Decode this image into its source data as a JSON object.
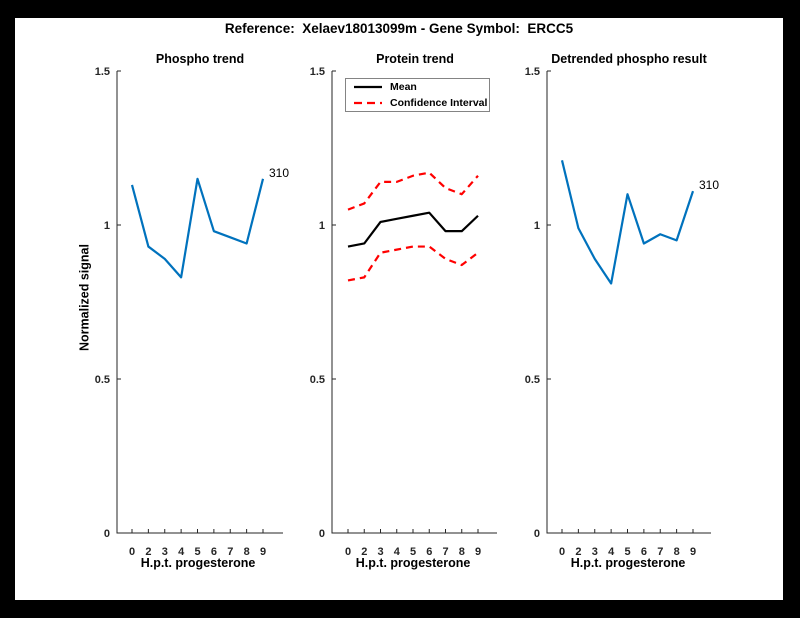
{
  "figure": {
    "title": "Reference:  Xelaev18013099m - Gene Symbol:  ERCC5",
    "background_color": "#000000",
    "area_color": "#ffffff"
  },
  "axes_style": {
    "axis_color": "#262626",
    "tick_label_color": "#262626"
  },
  "chart_data": [
    {
      "type": "line",
      "title": "Phospho trend",
      "xlabel": "H.p.t. progesterone",
      "ylabel": "Normalized signal",
      "ylim": [
        0,
        1.5
      ],
      "grid": false,
      "yticks": [
        "0",
        "0.5",
        "1",
        "1.5"
      ],
      "categories": [
        "0",
        "2",
        "3",
        "4",
        "5",
        "6",
        "7",
        "8",
        "9"
      ],
      "series": [
        {
          "name": "310",
          "color": "#0072bd",
          "style": "solid",
          "values": [
            1.13,
            0.93,
            0.89,
            0.83,
            1.15,
            0.98,
            0.96,
            0.94,
            1.15
          ]
        }
      ],
      "end_label": "310"
    },
    {
      "type": "line",
      "title": "Protein trend",
      "xlabel": "H.p.t. progesterone",
      "ylabel": "",
      "ylim": [
        0,
        1.5
      ],
      "grid": false,
      "yticks": [
        "0",
        "0.5",
        "1",
        "1.5"
      ],
      "categories": [
        "0",
        "2",
        "3",
        "4",
        "5",
        "6",
        "7",
        "8",
        "9"
      ],
      "series": [
        {
          "name": "Mean",
          "color": "#000000",
          "style": "solid",
          "values": [
            0.93,
            0.94,
            1.01,
            1.02,
            1.03,
            1.04,
            0.98,
            0.98,
            1.03
          ]
        },
        {
          "name": "Confidence Interval upper",
          "color": "#ff0000",
          "style": "dashed",
          "values": [
            1.05,
            1.07,
            1.14,
            1.14,
            1.16,
            1.17,
            1.12,
            1.1,
            1.16
          ]
        },
        {
          "name": "Confidence Interval lower",
          "color": "#ff0000",
          "style": "dashed",
          "values": [
            0.82,
            0.83,
            0.91,
            0.92,
            0.93,
            0.93,
            0.89,
            0.87,
            0.91
          ]
        }
      ],
      "legend": {
        "position": "northwest",
        "entries": [
          {
            "label": "Mean",
            "color": "#000000",
            "style": "solid"
          },
          {
            "label": "Confidence Interval",
            "color": "#ff0000",
            "style": "dashed"
          }
        ]
      }
    },
    {
      "type": "line",
      "title": "Detrended phospho result",
      "xlabel": "H.p.t. progesterone",
      "ylabel": "",
      "ylim": [
        0,
        1.5
      ],
      "grid": false,
      "yticks": [
        "0",
        "0.5",
        "1",
        "1.5"
      ],
      "categories": [
        "0",
        "2",
        "3",
        "4",
        "5",
        "6",
        "7",
        "8",
        "9"
      ],
      "series": [
        {
          "name": "310",
          "color": "#0072bd",
          "style": "solid",
          "values": [
            1.21,
            0.99,
            0.89,
            0.81,
            1.1,
            0.94,
            0.97,
            0.95,
            1.11
          ]
        }
      ],
      "end_label": "310"
    }
  ]
}
